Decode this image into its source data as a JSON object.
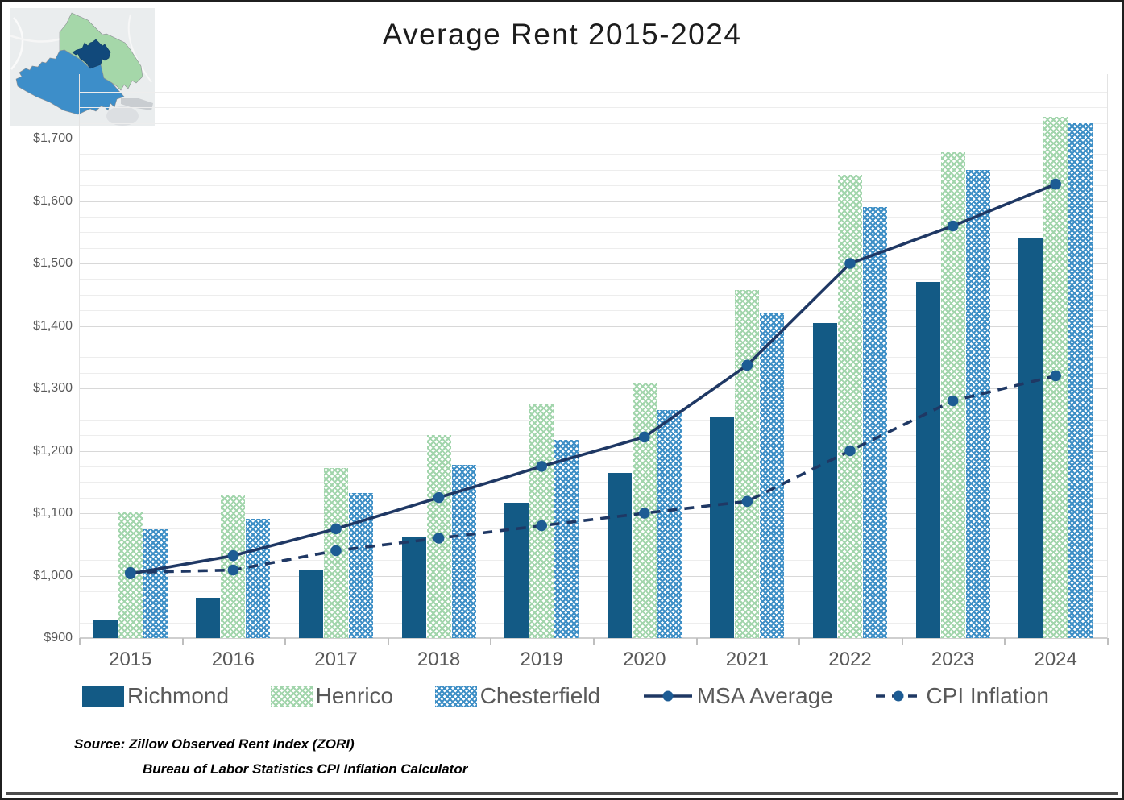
{
  "title": "Average Rent 2015-2024",
  "map_inset": {
    "description": "richmond-msa-locator-map",
    "regions": [
      {
        "name": "Henrico",
        "color": "#a5d7a9"
      },
      {
        "name": "Richmond",
        "color": "#11497b"
      },
      {
        "name": "Chesterfield",
        "color": "#3d8ec9"
      }
    ],
    "background": "#eaedee"
  },
  "chart_data": {
    "type": "bar",
    "title": "Average Rent 2015-2024",
    "categories": [
      "2015",
      "2016",
      "2017",
      "2018",
      "2019",
      "2020",
      "2021",
      "2022",
      "2023",
      "2024"
    ],
    "series": [
      {
        "name": "Richmond",
        "type": "bar",
        "style": "solid",
        "color": "#135a85",
        "values": [
          930,
          965,
          1010,
          1062,
          1117,
          1165,
          1255,
          1405,
          1470,
          1540
        ]
      },
      {
        "name": "Henrico",
        "type": "bar",
        "style": "lattice-pattern",
        "color": "#a2d5ac",
        "values": [
          1102,
          1128,
          1172,
          1225,
          1275,
          1308,
          1458,
          1642,
          1678,
          1735
        ]
      },
      {
        "name": "Chesterfield",
        "type": "bar",
        "style": "lattice-pattern",
        "color": "#3e8fc6",
        "values": [
          1074,
          1091,
          1132,
          1177,
          1218,
          1265,
          1420,
          1590,
          1650,
          1725
        ]
      },
      {
        "name": "MSA Average",
        "type": "line",
        "style": "solid",
        "color": "#1f3864",
        "marker_color": "#1d5c94",
        "values": [
          1003,
          1032,
          1075,
          1125,
          1175,
          1222,
          1337,
          1500,
          1560,
          1627
        ]
      },
      {
        "name": "CPI Inflation",
        "type": "line",
        "style": "dashed",
        "color": "#1f3864",
        "marker_color": "#1d5c94",
        "values": [
          1005,
          1009,
          1040,
          1060,
          1080,
          1100,
          1119,
          1200,
          1280,
          1320
        ]
      }
    ],
    "xlabel": "",
    "ylabel": "",
    "y_min": 900,
    "y_max": 1700,
    "y_tick_step": 100,
    "y_minor_step": 25,
    "y_tick_labels": [
      "$900",
      "$1,000",
      "$1,100",
      "$1,200",
      "$1,300",
      "$1,400",
      "$1,500",
      "$1,600",
      "$1,700"
    ],
    "grid": "major-and-minor-horizontal",
    "legend_position": "bottom"
  },
  "legend": {
    "items": [
      {
        "label": "Richmond"
      },
      {
        "label": "Henrico"
      },
      {
        "label": "Chesterfield"
      },
      {
        "label": "MSA Average"
      },
      {
        "label": "CPI Inflation"
      }
    ]
  },
  "source": {
    "line1": "Source:  Zillow Observed Rent Index (ZORI)",
    "line2": "Bureau of Labor Statistics CPI Inflation Calculator"
  }
}
